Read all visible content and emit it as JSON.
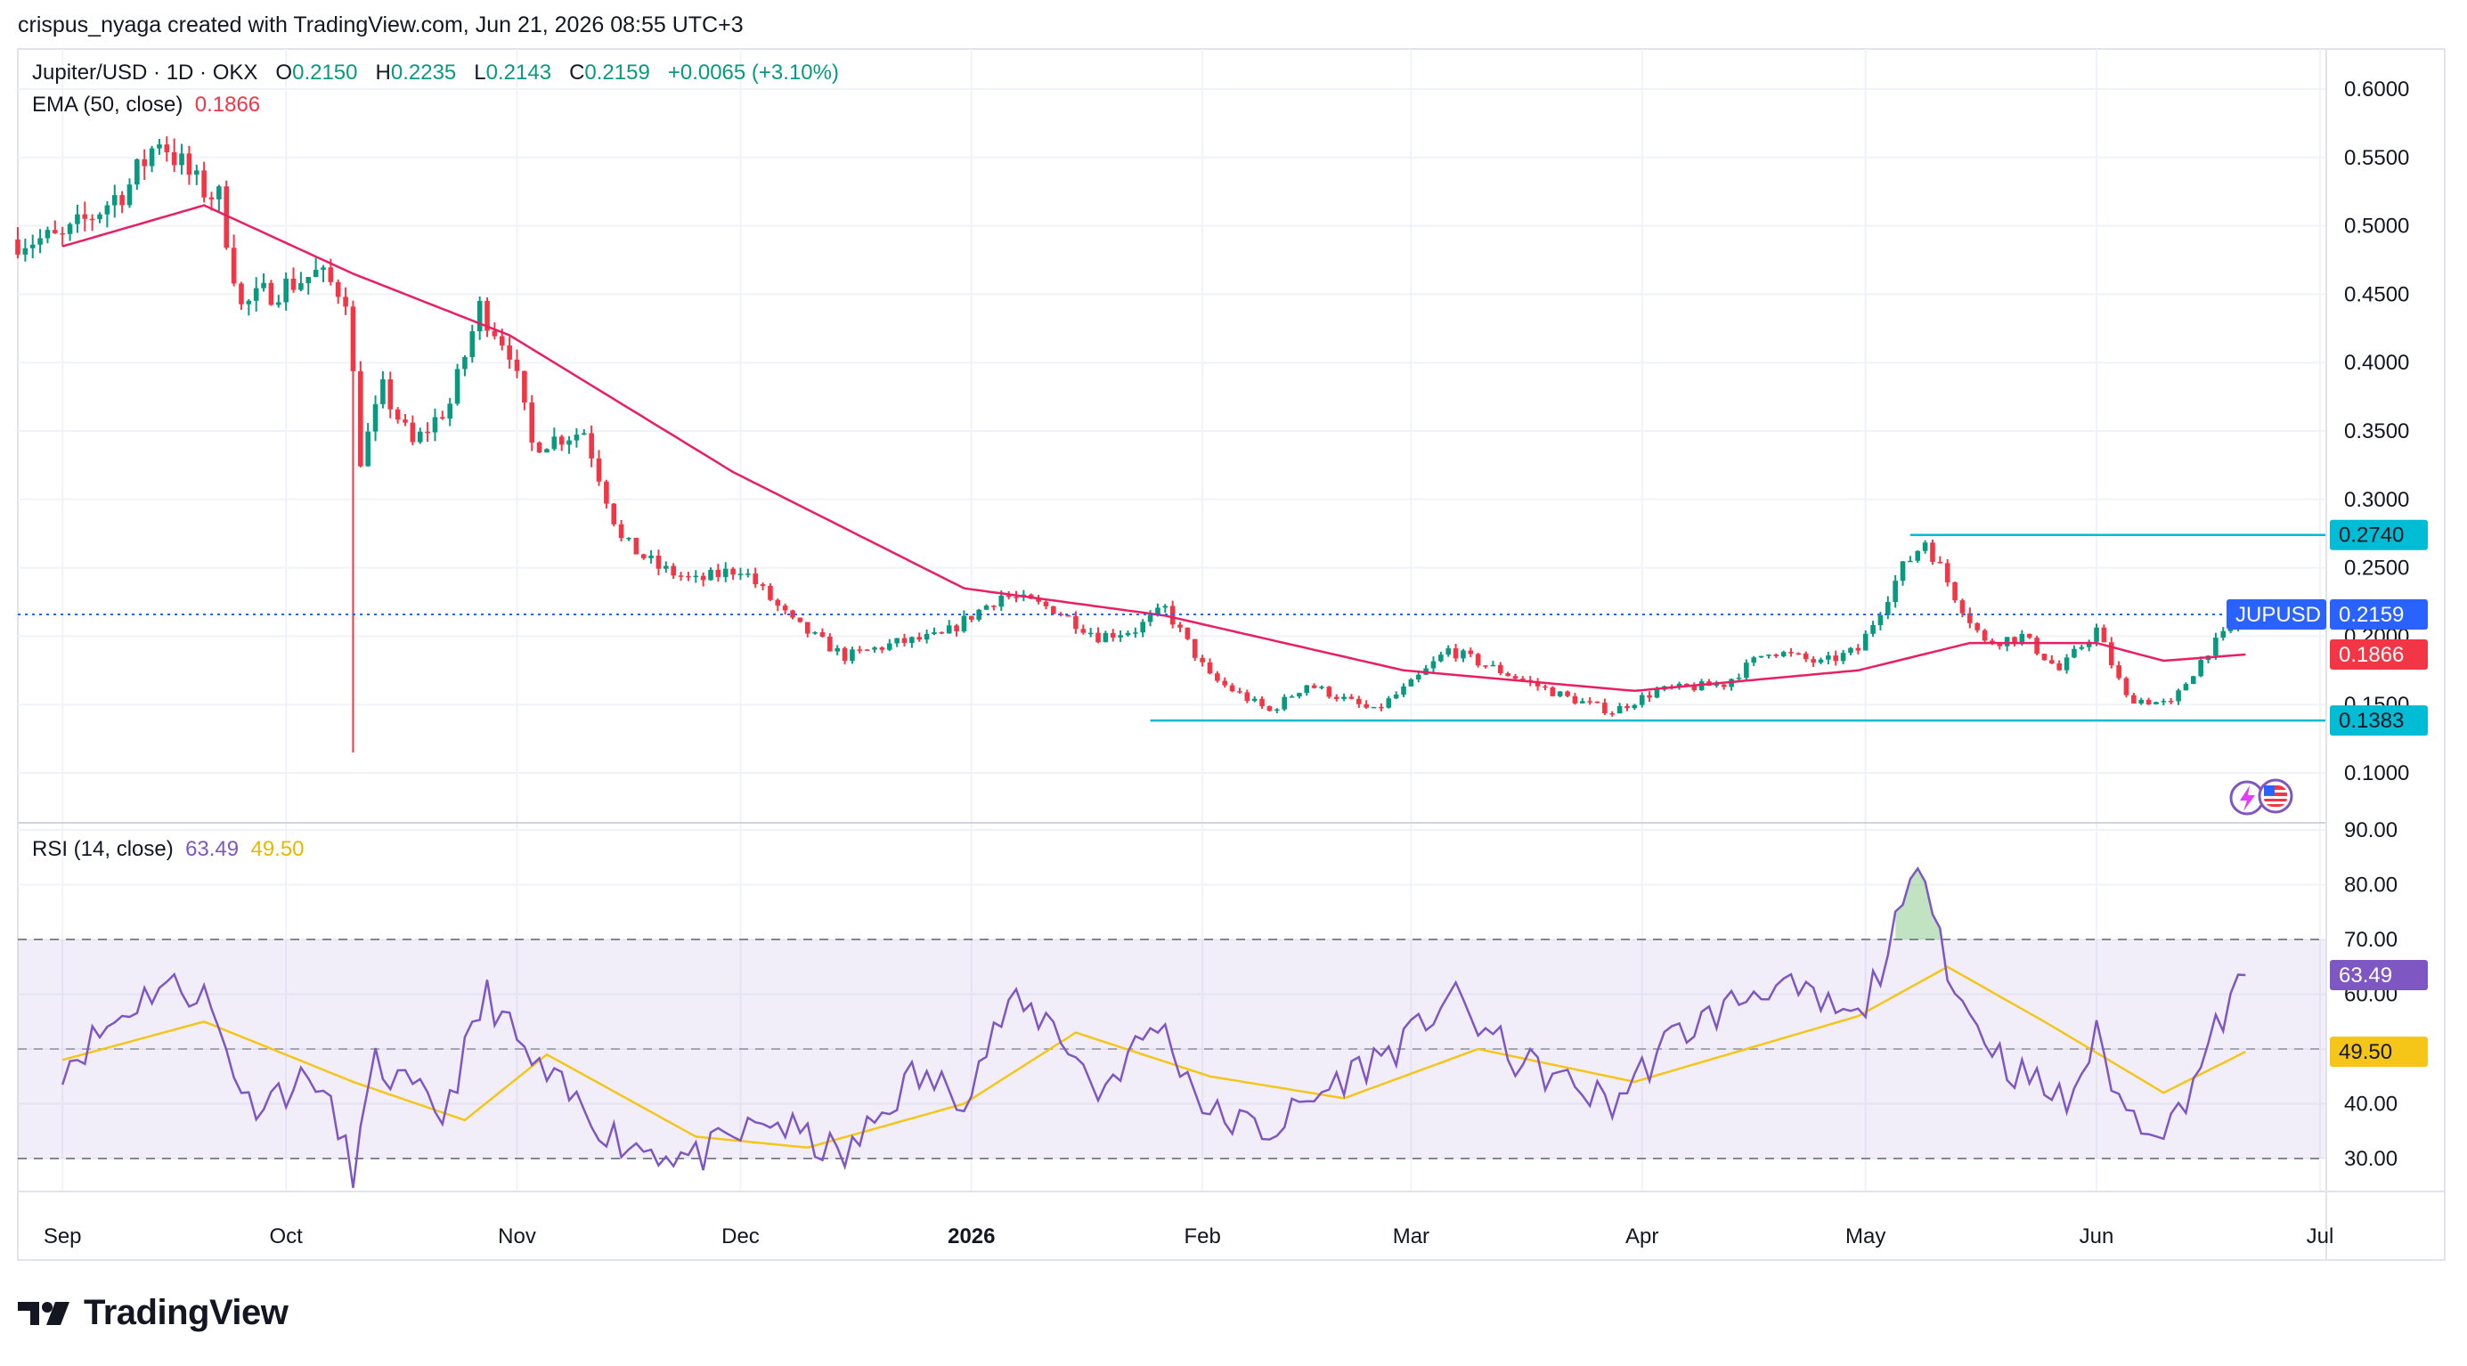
{
  "header": {
    "credit": "crispus_nyaga created with TradingView.com, Jun 21, 2026 08:55 UTC+3"
  },
  "legend": {
    "symbol": "Jupiter/USD · 1D · OKX",
    "o_label": "O",
    "o_value": "0.2150",
    "h_label": "H",
    "h_value": "0.2235",
    "l_label": "L",
    "l_value": "0.2143",
    "c_label": "C",
    "c_value": "0.2159",
    "change": "+0.0065 (+3.10%)",
    "ema_label": "EMA (50, close)",
    "ema_value": "0.1866",
    "rsi_label": "RSI (14, close)",
    "rsi_value": "63.49",
    "rsi_ma_value": "49.50"
  },
  "badges": {
    "resistance": "0.2740",
    "symbol_name": "JUPUSD",
    "price": "0.2159",
    "ema": "0.1866",
    "support": "0.1383",
    "rsi": "63.49",
    "rsi_ma": "49.50"
  },
  "brand": {
    "name": "TradingView"
  },
  "colors": {
    "up": "#089981",
    "down": "#f23645",
    "ema": "#e91e63",
    "rsi": "#7e57c2",
    "rsi_ma": "#f5c518",
    "levels": "#00bcd4",
    "price_badge": "#2962ff"
  },
  "chart_data": {
    "type": "candlestick",
    "price_axis": {
      "ticks": [
        "0.6000",
        "0.5500",
        "0.5000",
        "0.4500",
        "0.4000",
        "0.3500",
        "0.3000",
        "0.2500",
        "0.2000",
        "0.1500",
        "0.1000"
      ]
    },
    "rsi_axis": {
      "ticks": [
        "90.00",
        "80.00",
        "70.00",
        "60.00",
        "50.00",
        "40.00",
        "30.00"
      ]
    },
    "x_axis": {
      "labels": [
        {
          "label": "Sep",
          "date": "2025-09-01",
          "bold": false
        },
        {
          "label": "Oct",
          "date": "2025-10-01",
          "bold": false
        },
        {
          "label": "Nov",
          "date": "2025-11-01",
          "bold": false
        },
        {
          "label": "Dec",
          "date": "2025-12-01",
          "bold": false
        },
        {
          "label": "2026",
          "date": "2026-01-01",
          "bold": true
        },
        {
          "label": "Feb",
          "date": "2026-02-01",
          "bold": false
        },
        {
          "label": "Mar",
          "date": "2026-03-01",
          "bold": false
        },
        {
          "label": "Apr",
          "date": "2026-04-01",
          "bold": false
        },
        {
          "label": "May",
          "date": "2026-05-01",
          "bold": false
        },
        {
          "label": "Jun",
          "date": "2026-06-01",
          "bold": false
        },
        {
          "label": "Jul",
          "date": "2026-07-01",
          "bold": false
        }
      ]
    },
    "horizontal_levels": [
      {
        "value": 0.274,
        "from": "2026-05-07"
      },
      {
        "value": 0.1383,
        "from": "2026-01-25"
      }
    ],
    "last_price": 0.2159,
    "rsi_bands": {
      "upper": 70,
      "middle": 50,
      "lower": 30
    },
    "close_waypoints": [
      {
        "date": "2025-09-01",
        "close": 0.49
      },
      {
        "date": "2025-09-10",
        "close": 0.53
      },
      {
        "date": "2025-09-14",
        "close": 0.565
      },
      {
        "date": "2025-09-19",
        "close": 0.53
      },
      {
        "date": "2025-09-22",
        "close": 0.52
      },
      {
        "date": "2025-09-25",
        "close": 0.44
      },
      {
        "date": "2025-09-28",
        "close": 0.45
      },
      {
        "date": "2025-10-05",
        "close": 0.465
      },
      {
        "date": "2025-10-09",
        "close": 0.45
      },
      {
        "date": "2025-10-11",
        "close": 0.33
      },
      {
        "date": "2025-10-14",
        "close": 0.38
      },
      {
        "date": "2025-10-18",
        "close": 0.34
      },
      {
        "date": "2025-10-23",
        "close": 0.37
      },
      {
        "date": "2025-10-27",
        "close": 0.44
      },
      {
        "date": "2025-10-31",
        "close": 0.41
      },
      {
        "date": "2025-11-03",
        "close": 0.34
      },
      {
        "date": "2025-11-10",
        "close": 0.35
      },
      {
        "date": "2025-11-15",
        "close": 0.27
      },
      {
        "date": "2025-11-20",
        "close": 0.25
      },
      {
        "date": "2025-11-25",
        "close": 0.24
      },
      {
        "date": "2025-12-01",
        "close": 0.25
      },
      {
        "date": "2025-12-08",
        "close": 0.21
      },
      {
        "date": "2025-12-15",
        "close": 0.185
      },
      {
        "date": "2025-12-22",
        "close": 0.195
      },
      {
        "date": "2025-12-28",
        "close": 0.2
      },
      {
        "date": "2026-01-05",
        "close": 0.23
      },
      {
        "date": "2026-01-12",
        "close": 0.22
      },
      {
        "date": "2026-01-18",
        "close": 0.2
      },
      {
        "date": "2026-01-23",
        "close": 0.205
      },
      {
        "date": "2026-01-27",
        "close": 0.22
      },
      {
        "date": "2026-02-02",
        "close": 0.17
      },
      {
        "date": "2026-02-10",
        "close": 0.145
      },
      {
        "date": "2026-02-15",
        "close": 0.165
      },
      {
        "date": "2026-02-24",
        "close": 0.145
      },
      {
        "date": "2026-03-01",
        "close": 0.165
      },
      {
        "date": "2026-03-06",
        "close": 0.19
      },
      {
        "date": "2026-03-15",
        "close": 0.17
      },
      {
        "date": "2026-03-22",
        "close": 0.155
      },
      {
        "date": "2026-03-28",
        "close": 0.145
      },
      {
        "date": "2026-04-03",
        "close": 0.16
      },
      {
        "date": "2026-04-12",
        "close": 0.165
      },
      {
        "date": "2026-04-18",
        "close": 0.19
      },
      {
        "date": "2026-04-25",
        "close": 0.18
      },
      {
        "date": "2026-04-30",
        "close": 0.19
      },
      {
        "date": "2026-05-06",
        "close": 0.25
      },
      {
        "date": "2026-05-09",
        "close": 0.27
      },
      {
        "date": "2026-05-13",
        "close": 0.23
      },
      {
        "date": "2026-05-17",
        "close": 0.195
      },
      {
        "date": "2026-05-22",
        "close": 0.2
      },
      {
        "date": "2026-05-27",
        "close": 0.175
      },
      {
        "date": "2026-06-01",
        "close": 0.205
      },
      {
        "date": "2026-06-05",
        "close": 0.155
      },
      {
        "date": "2026-06-11",
        "close": 0.15
      },
      {
        "date": "2026-06-16",
        "close": 0.19
      },
      {
        "date": "2026-06-20",
        "close": 0.2094
      },
      {
        "date": "2026-06-21",
        "close": 0.2159
      }
    ],
    "spike_low": {
      "date": "2025-10-10",
      "low": 0.115
    },
    "ema_waypoints": [
      {
        "date": "2025-09-01",
        "value": 0.485
      },
      {
        "date": "2025-09-20",
        "value": 0.515
      },
      {
        "date": "2025-10-10",
        "value": 0.465
      },
      {
        "date": "2025-10-31",
        "value": 0.42
      },
      {
        "date": "2025-11-30",
        "value": 0.32
      },
      {
        "date": "2025-12-31",
        "value": 0.235
      },
      {
        "date": "2026-01-27",
        "value": 0.215
      },
      {
        "date": "2026-02-28",
        "value": 0.175
      },
      {
        "date": "2026-03-31",
        "value": 0.16
      },
      {
        "date": "2026-04-30",
        "value": 0.175
      },
      {
        "date": "2026-05-15",
        "value": 0.195
      },
      {
        "date": "2026-06-01",
        "value": 0.195
      },
      {
        "date": "2026-06-10",
        "value": 0.182
      },
      {
        "date": "2026-06-21",
        "value": 0.1866
      }
    ],
    "rsi_waypoints": [
      {
        "date": "2025-09-01",
        "value": 47
      },
      {
        "date": "2025-09-14",
        "value": 62
      },
      {
        "date": "2025-09-20",
        "value": 60
      },
      {
        "date": "2025-09-26",
        "value": 40
      },
      {
        "date": "2025-10-05",
        "value": 45
      },
      {
        "date": "2025-10-10",
        "value": 28
      },
      {
        "date": "2025-10-13",
        "value": 47
      },
      {
        "date": "2025-10-22",
        "value": 38
      },
      {
        "date": "2025-10-28",
        "value": 60
      },
      {
        "date": "2025-11-03",
        "value": 47
      },
      {
        "date": "2025-11-15",
        "value": 33
      },
      {
        "date": "2025-11-25",
        "value": 30
      },
      {
        "date": "2025-12-05",
        "value": 37
      },
      {
        "date": "2025-12-15",
        "value": 30
      },
      {
        "date": "2025-12-24",
        "value": 45
      },
      {
        "date": "2025-12-31",
        "value": 42
      },
      {
        "date": "2026-01-06",
        "value": 58
      },
      {
        "date": "2026-01-12",
        "value": 55
      },
      {
        "date": "2026-01-18",
        "value": 42
      },
      {
        "date": "2026-01-26",
        "value": 55
      },
      {
        "date": "2026-02-02",
        "value": 38
      },
      {
        "date": "2026-02-10",
        "value": 35
      },
      {
        "date": "2026-02-20",
        "value": 45
      },
      {
        "date": "2026-03-01",
        "value": 52
      },
      {
        "date": "2026-03-06",
        "value": 60
      },
      {
        "date": "2026-03-15",
        "value": 48
      },
      {
        "date": "2026-03-28",
        "value": 40
      },
      {
        "date": "2026-04-05",
        "value": 52
      },
      {
        "date": "2026-04-18",
        "value": 62
      },
      {
        "date": "2026-04-30",
        "value": 55
      },
      {
        "date": "2026-05-06",
        "value": 75
      },
      {
        "date": "2026-05-09",
        "value": 84
      },
      {
        "date": "2026-05-13",
        "value": 60
      },
      {
        "date": "2026-05-20",
        "value": 47
      },
      {
        "date": "2026-05-28",
        "value": 40
      },
      {
        "date": "2026-06-01",
        "value": 52
      },
      {
        "date": "2026-06-05",
        "value": 38
      },
      {
        "date": "2026-06-11",
        "value": 36
      },
      {
        "date": "2026-06-18",
        "value": 56
      },
      {
        "date": "2026-06-21",
        "value": 63.49
      }
    ],
    "rsi_ma_waypoints": [
      {
        "date": "2025-09-01",
        "value": 48
      },
      {
        "date": "2025-09-20",
        "value": 55
      },
      {
        "date": "2025-10-10",
        "value": 44
      },
      {
        "date": "2025-10-25",
        "value": 37
      },
      {
        "date": "2025-11-05",
        "value": 49
      },
      {
        "date": "2025-11-25",
        "value": 34
      },
      {
        "date": "2025-12-10",
        "value": 32
      },
      {
        "date": "2025-12-31",
        "value": 40
      },
      {
        "date": "2026-01-15",
        "value": 53
      },
      {
        "date": "2026-02-02",
        "value": 45
      },
      {
        "date": "2026-02-20",
        "value": 41
      },
      {
        "date": "2026-03-10",
        "value": 50
      },
      {
        "date": "2026-03-31",
        "value": 44
      },
      {
        "date": "2026-04-30",
        "value": 56
      },
      {
        "date": "2026-05-12",
        "value": 65
      },
      {
        "date": "2026-05-25",
        "value": 55
      },
      {
        "date": "2026-06-10",
        "value": 42
      },
      {
        "date": "2026-06-21",
        "value": 49.5
      }
    ]
  }
}
